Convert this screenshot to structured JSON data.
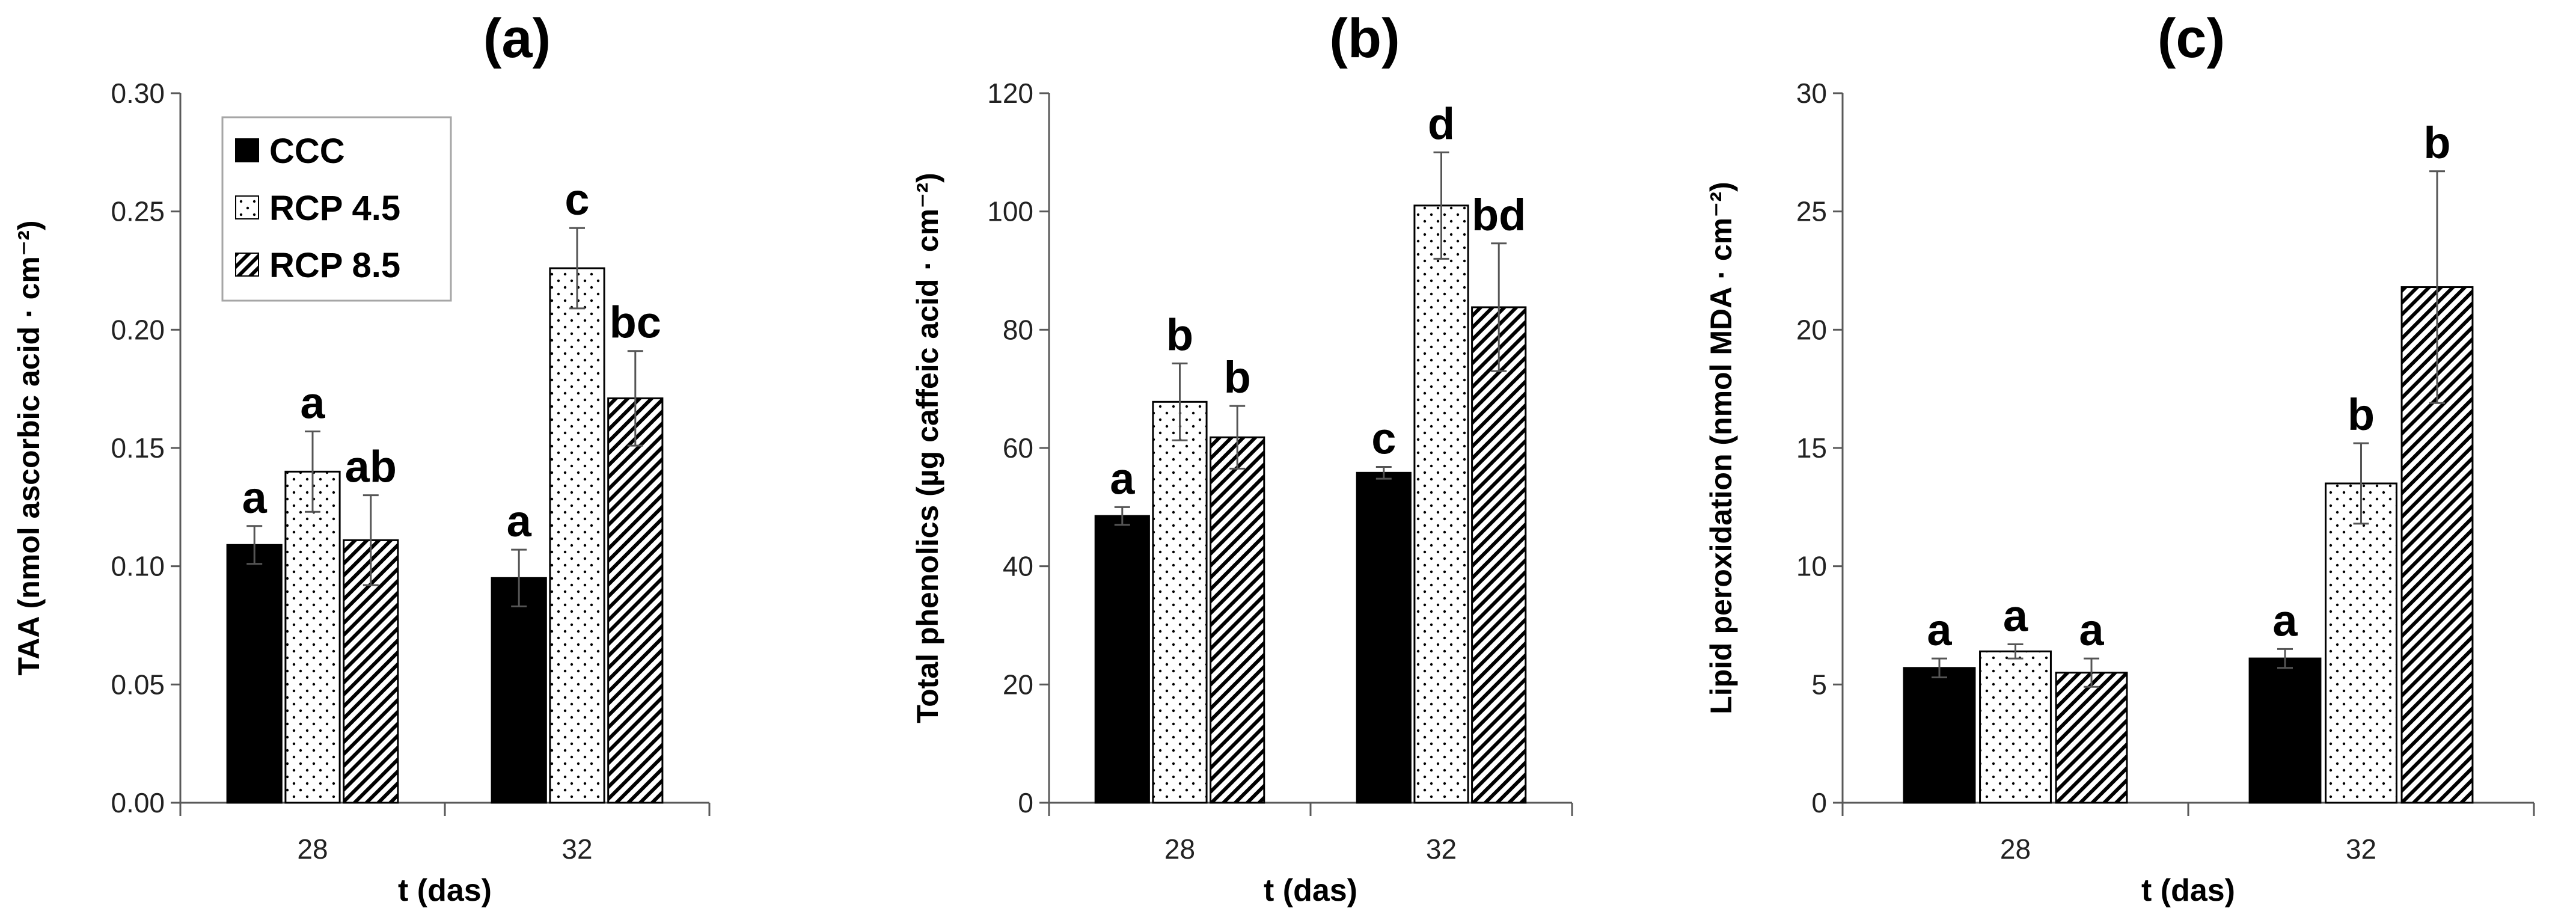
{
  "legend": {
    "entries": [
      {
        "label": "CCC",
        "pattern": "solid"
      },
      {
        "label": "RCP 4.5",
        "pattern": "dots"
      },
      {
        "label": "RCP 8.5",
        "pattern": "hatch"
      }
    ]
  },
  "colors": {
    "solid": "#000000",
    "axis": "#595959",
    "dots": "#000000",
    "hatch": "#000000"
  },
  "chart_data": [
    {
      "type": "bar",
      "title": "(a)",
      "xlabel": "t (das)",
      "ylabel": "TAA (nmol ascorbic acid · cm⁻²)",
      "ylim": [
        0,
        0.3
      ],
      "yticks": [
        "0.00",
        "0.05",
        "0.10",
        "0.15",
        "0.20",
        "0.25",
        "0.30"
      ],
      "categories": [
        "28",
        "32"
      ],
      "series": [
        {
          "name": "CCC",
          "values": [
            0.109,
            0.095
          ],
          "errors": [
            0.008,
            0.012
          ],
          "labels": [
            "a",
            "a"
          ]
        },
        {
          "name": "RCP 4.5",
          "values": [
            0.14,
            0.226
          ],
          "errors": [
            0.017,
            0.017
          ],
          "labels": [
            "a",
            "c"
          ]
        },
        {
          "name": "RCP 8.5",
          "values": [
            0.111,
            0.171
          ],
          "errors": [
            0.019,
            0.02
          ],
          "labels": [
            "ab",
            "bc"
          ]
        }
      ]
    },
    {
      "type": "bar",
      "title": "(b)",
      "xlabel": "t (das)",
      "ylabel": "Total phenolics (µg caffeic acid · cm⁻²)",
      "ylim": [
        0,
        120
      ],
      "yticks": [
        "0",
        "20",
        "40",
        "60",
        "80",
        "100",
        "120"
      ],
      "categories": [
        "28",
        "32"
      ],
      "series": [
        {
          "name": "CCC",
          "values": [
            48.5,
            55.8
          ],
          "errors": [
            1.5,
            1.0
          ],
          "labels": [
            "a",
            "c"
          ]
        },
        {
          "name": "RCP 4.5",
          "values": [
            67.8,
            101.0
          ],
          "errors": [
            6.5,
            9.0
          ],
          "labels": [
            "b",
            "d"
          ]
        },
        {
          "name": "RCP 8.5",
          "values": [
            61.8,
            83.8
          ],
          "errors": [
            5.3,
            10.8
          ],
          "labels": [
            "b",
            "bd"
          ]
        }
      ]
    },
    {
      "type": "bar",
      "title": "(c)",
      "xlabel": "t (das)",
      "ylabel": "Lipid peroxidation (nmol MDA · cm⁻²)",
      "ylim": [
        0,
        30
      ],
      "yticks": [
        "0",
        "5",
        "10",
        "15",
        "20",
        "25",
        "30"
      ],
      "categories": [
        "28",
        "32"
      ],
      "series": [
        {
          "name": "CCC",
          "values": [
            5.7,
            6.1
          ],
          "errors": [
            0.4,
            0.4
          ],
          "labels": [
            "a",
            "a"
          ]
        },
        {
          "name": "RCP 4.5",
          "values": [
            6.4,
            13.5
          ],
          "errors": [
            0.3,
            1.7
          ],
          "labels": [
            "a",
            "b"
          ]
        },
        {
          "name": "RCP 8.5",
          "values": [
            5.5,
            21.8
          ],
          "errors": [
            0.6,
            4.9
          ],
          "labels": [
            "a",
            "b"
          ]
        }
      ]
    }
  ]
}
